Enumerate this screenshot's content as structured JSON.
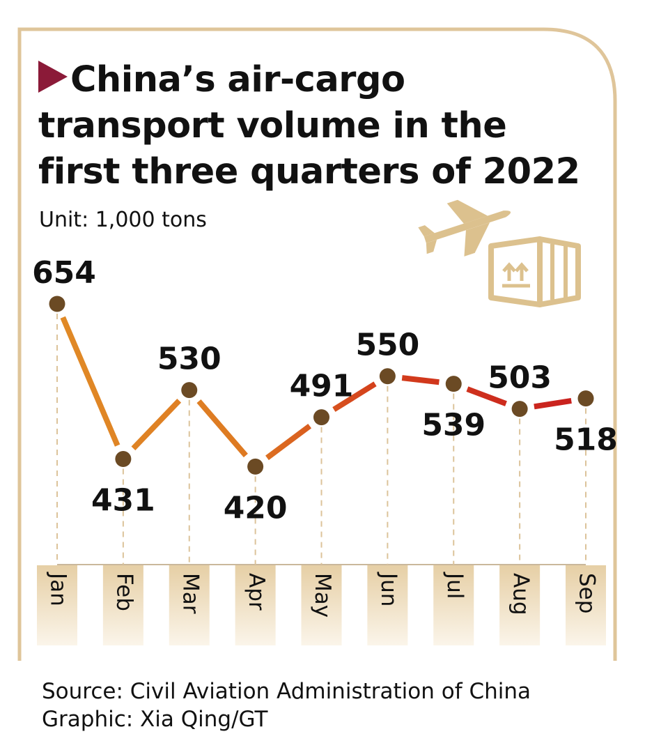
{
  "title": "China’s air-cargo transport volume in the first three quarters of 2022",
  "title_lines": [
    "China’s air-cargo",
    "transport volume in the",
    "first three quarters of 2022"
  ],
  "unit": "Unit: 1,000 tons",
  "source": "Source: Civil Aviation Administration of China",
  "graphic": "Graphic: Xia Qing/GT",
  "icons": [
    "triangle-marker-icon",
    "airplane-icon",
    "cargo-box-icon"
  ],
  "colors": {
    "frame": "#dfc59a",
    "label_band": "#efdcbd",
    "marker": "#6b4a24",
    "title_triangle": "#8b1a38",
    "line_start": "#e08a26",
    "line_end": "#c81e1e"
  },
  "chart_data": {
    "type": "line",
    "title": "China’s air-cargo transport volume in the first three quarters of 2022",
    "xlabel": "",
    "ylabel": "Unit: 1,000 tons",
    "categories": [
      "Jan",
      "Feb",
      "Mar",
      "Apr",
      "May",
      "Jun",
      "Jul",
      "Aug",
      "Sep"
    ],
    "values": [
      654,
      431,
      530,
      420,
      491,
      550,
      539,
      503,
      518
    ],
    "label_positions": [
      "above",
      "below",
      "above",
      "below",
      "above",
      "above",
      "below",
      "above",
      "below"
    ],
    "ylim": [
      230,
      680
    ],
    "grid": false
  }
}
